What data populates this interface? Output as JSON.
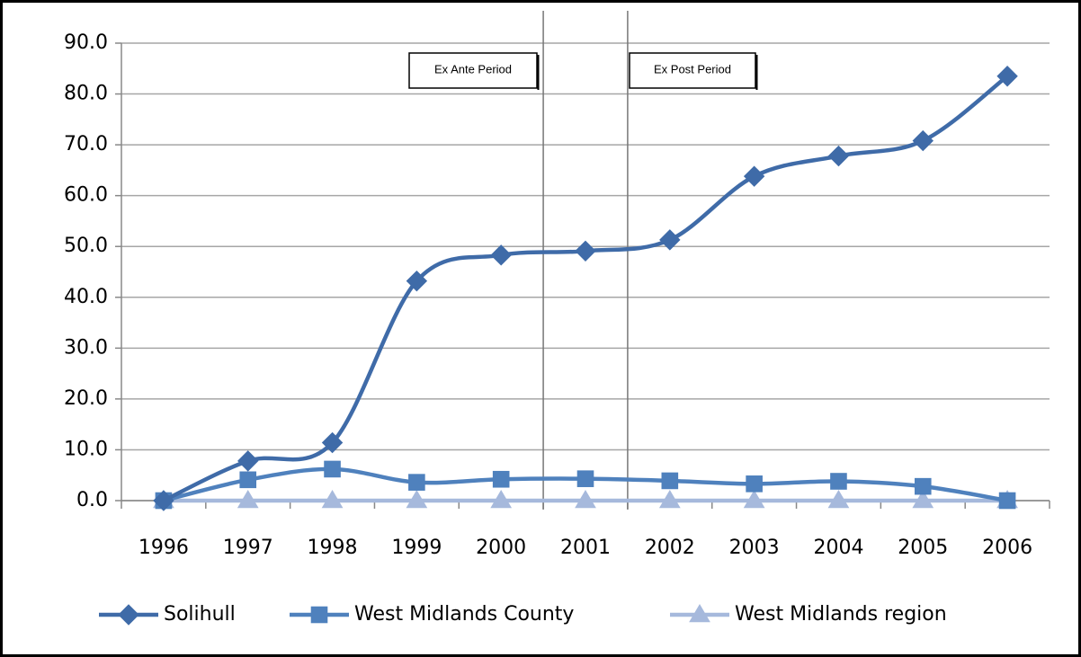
{
  "chart_data": {
    "type": "line",
    "categories": [
      "1996",
      "1997",
      "1998",
      "1999",
      "2000",
      "2001",
      "2002",
      "2003",
      "2004",
      "2005",
      "2006"
    ],
    "series": [
      {
        "name": "Solihull",
        "color": "#3f6ba8",
        "marker": "diamond",
        "values": [
          0,
          7.8,
          11.4,
          43.2,
          48.3,
          49.1,
          51.3,
          63.8,
          67.8,
          70.8,
          83.5
        ]
      },
      {
        "name": "West Midlands County",
        "color": "#4f81bd",
        "marker": "square",
        "values": [
          0,
          4.1,
          6.2,
          3.6,
          4.2,
          4.3,
          3.9,
          3.3,
          3.8,
          2.8,
          0
        ]
      },
      {
        "name": "West Midlands region",
        "color": "#a6b9dc",
        "marker": "triangle",
        "values": [
          0,
          0,
          0,
          0,
          0,
          0,
          0,
          0,
          0,
          0,
          0
        ]
      }
    ],
    "ylim": [
      0,
      90
    ],
    "yticks": [
      {
        "value": 0,
        "label": "0.0"
      },
      {
        "value": 10,
        "label": "10.0"
      },
      {
        "value": 20,
        "label": "20.0"
      },
      {
        "value": 30,
        "label": "30.0"
      },
      {
        "value": 40,
        "label": "40.0"
      },
      {
        "value": 50,
        "label": "50.0"
      },
      {
        "value": 60,
        "label": "60.0"
      },
      {
        "value": 70,
        "label": "70.0"
      },
      {
        "value": 80,
        "label": "80.0"
      },
      {
        "value": 90,
        "label": "90.0"
      }
    ],
    "grid": true,
    "smooth": true,
    "legend": "bottom",
    "annotations": [
      "Ex Ante Period",
      "Ex Post Period"
    ]
  }
}
